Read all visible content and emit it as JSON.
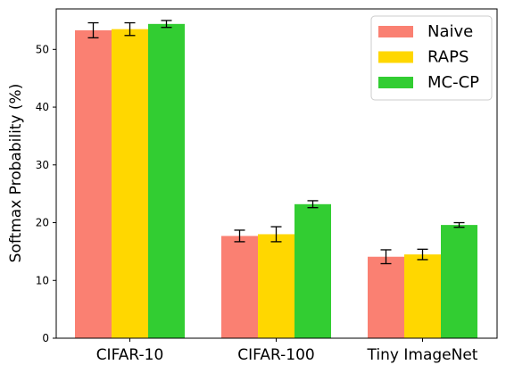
{
  "chart_data": {
    "type": "bar",
    "title": "",
    "xlabel": "",
    "ylabel": "Softmax Probability (%)",
    "ylim": [
      0,
      57
    ],
    "yticks": [
      0,
      10,
      20,
      30,
      40,
      50
    ],
    "categories": [
      "CIFAR-10",
      "CIFAR-100",
      "Tiny ImageNet"
    ],
    "series": [
      {
        "name": "Naive",
        "color": "#fa8072",
        "values": [
          53.3,
          17.7,
          14.1
        ],
        "errors": [
          1.3,
          1.0,
          1.2
        ]
      },
      {
        "name": "RAPS",
        "color": "#ffd700",
        "values": [
          53.5,
          18.0,
          14.5
        ],
        "errors": [
          1.1,
          1.3,
          0.9
        ]
      },
      {
        "name": "MC-CP",
        "color": "#32cd32",
        "values": [
          54.4,
          23.2,
          19.6
        ],
        "errors": [
          0.6,
          0.6,
          0.4
        ]
      }
    ],
    "error_bars": true,
    "grid": false,
    "legend_position": "top-right"
  }
}
